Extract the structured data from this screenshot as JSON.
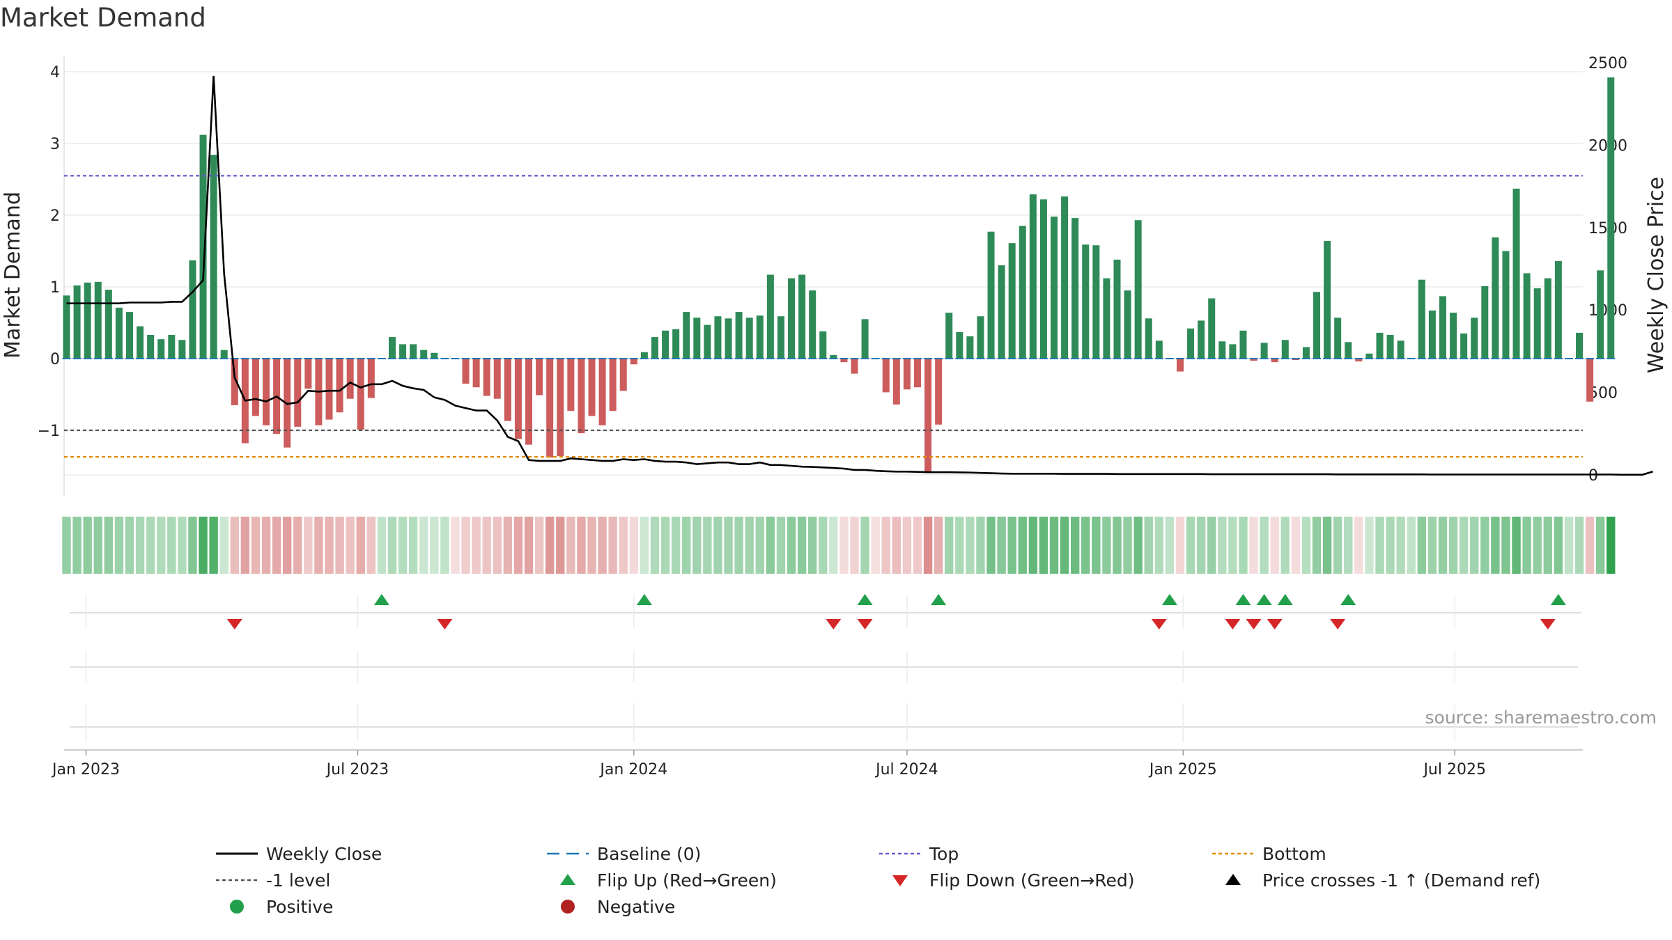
{
  "chart_data": {
    "type": "bar",
    "title": "Market Demand",
    "ylabel": "Market Demand",
    "ylabel_right": "Weekly Close Price",
    "ylim": [
      -1.6,
      4.0
    ],
    "ylim_right": [
      0,
      2550
    ],
    "yticks": [
      {
        "value": 4,
        "label": "4"
      },
      {
        "value": 3,
        "label": "3"
      },
      {
        "value": 2,
        "label": "2"
      },
      {
        "value": 1,
        "label": "1"
      },
      {
        "value": 0,
        "label": "0"
      },
      {
        "value": -1,
        "label": "−1"
      }
    ],
    "yticks_right": [
      {
        "value": 2500,
        "label": "2500"
      },
      {
        "value": 2000,
        "label": "2000"
      },
      {
        "value": 1500,
        "label": "1500"
      },
      {
        "value": 1000,
        "label": "1000"
      },
      {
        "value": 500,
        "label": "500"
      },
      {
        "value": 0,
        "label": "0"
      }
    ],
    "x_start": "2022-12-19",
    "x_ticks": [
      {
        "date": "2023-01-01",
        "label": "Jan 2023"
      },
      {
        "date": "2023-07-01",
        "label": "Jul 2023"
      },
      {
        "date": "2024-01-01",
        "label": "Jan 2024"
      },
      {
        "date": "2024-07-01",
        "label": "Jul 2024"
      },
      {
        "date": "2025-01-01",
        "label": "Jan 2025"
      },
      {
        "date": "2025-07-01",
        "label": "Jul 2025"
      }
    ],
    "reference_lines": {
      "baseline": 0,
      "top": 2.55,
      "minus_one": -1,
      "bottom": -1.37
    },
    "demand": [
      0.88,
      1.02,
      1.06,
      1.07,
      0.96,
      0.71,
      0.65,
      0.45,
      0.33,
      0.27,
      0.33,
      0.26,
      1.37,
      3.12,
      2.84,
      0.12,
      -0.65,
      -1.18,
      -0.8,
      -0.93,
      -1.05,
      -1.24,
      -0.95,
      -0.42,
      -0.93,
      -0.85,
      -0.75,
      -0.56,
      -0.99,
      -0.55,
      0,
      0.3,
      0.2,
      0.2,
      0.12,
      0.08,
      0,
      -0.01,
      -0.35,
      -0.4,
      -0.52,
      -0.56,
      -0.87,
      -1.12,
      -1.2,
      -0.51,
      -1.38,
      -1.36,
      -0.73,
      -1.04,
      -0.8,
      -0.93,
      -0.73,
      -0.45,
      -0.08,
      0.09,
      0.3,
      0.39,
      0.41,
      0.65,
      0.57,
      0.47,
      0.59,
      0.56,
      0.65,
      0.57,
      0.6,
      1.17,
      0.59,
      1.12,
      1.17,
      0.95,
      0.38,
      0.05,
      -0.05,
      -0.21,
      0.55,
      -0.01,
      -0.47,
      -0.64,
      -0.43,
      -0.4,
      -1.59,
      -0.92,
      0.64,
      0.37,
      0.31,
      0.59,
      1.77,
      1.3,
      1.61,
      1.85,
      2.29,
      2.22,
      1.98,
      2.26,
      1.96,
      1.59,
      1.58,
      1.12,
      1.38,
      0.95,
      1.93,
      0.56,
      0.25,
      0,
      -0.18,
      0.42,
      0.53,
      0.84,
      0.24,
      0.2,
      0.39,
      -0.03,
      0.22,
      -0.05,
      0.26,
      -0.02,
      0.16,
      0.93,
      1.64,
      0.57,
      0.23,
      -0.04,
      0.07,
      0.36,
      0.33,
      0.25,
      0,
      1.1,
      0.67,
      0.87,
      0.64,
      0.35,
      0.57,
      1.01,
      1.69,
      1.5,
      2.37,
      1.19,
      0.98,
      1.12,
      1.36,
      0,
      0.36,
      -0.6,
      1.23,
      3.92
    ],
    "weekly_close": [
      1040,
      1040,
      1040,
      1040,
      1040,
      1040,
      1045,
      1045,
      1045,
      1045,
      1050,
      1050,
      1110,
      1180,
      2420,
      1220,
      590,
      450,
      460,
      445,
      475,
      430,
      440,
      510,
      505,
      510,
      510,
      560,
      530,
      550,
      550,
      570,
      540,
      525,
      515,
      470,
      455,
      420,
      405,
      390,
      390,
      330,
      230,
      205,
      90,
      85,
      85,
      85,
      100,
      95,
      90,
      85,
      85,
      95,
      90,
      95,
      85,
      80,
      80,
      75,
      65,
      70,
      75,
      75,
      65,
      65,
      75,
      60,
      60,
      55,
      50,
      48,
      45,
      42,
      38,
      30,
      30,
      25,
      22,
      20,
      20,
      18,
      16,
      16,
      16,
      15,
      14,
      12,
      10,
      8,
      7,
      7,
      7,
      7,
      7,
      6,
      6,
      6,
      6,
      6,
      5,
      5,
      5,
      5,
      5,
      5,
      5,
      5,
      5,
      4,
      4,
      4,
      4,
      4,
      4,
      4,
      4,
      4,
      4,
      4,
      4,
      3,
      3,
      3,
      3,
      3,
      3,
      3,
      3,
      3,
      2,
      2,
      2,
      2,
      2,
      2,
      2,
      2,
      2,
      2,
      2,
      2,
      2,
      2,
      2,
      2,
      2,
      2,
      1,
      1,
      1,
      20
    ],
    "flip_up_weeks": [
      30,
      55,
      76,
      83,
      105,
      112,
      114,
      116,
      122,
      142
    ],
    "flip_down_weeks": [
      16,
      36,
      73,
      76,
      104,
      111,
      113,
      115,
      121,
      141
    ],
    "legend": [
      {
        "key": "weekly_close",
        "label": "Weekly Close"
      },
      {
        "key": "baseline",
        "label": "Baseline (0)"
      },
      {
        "key": "top",
        "label": "Top"
      },
      {
        "key": "bottom",
        "label": "Bottom"
      },
      {
        "key": "minus_one",
        "label": "-1 level"
      },
      {
        "key": "flip_up",
        "label": "Flip Up (Red→Green)"
      },
      {
        "key": "flip_down",
        "label": "Flip Down (Green→Red)"
      },
      {
        "key": "price_cross",
        "label": "Price crosses -1 ↑ (Demand ref)"
      },
      {
        "key": "positive",
        "label": "Positive"
      },
      {
        "key": "negative",
        "label": "Negative"
      }
    ],
    "source": "source: sharemaestro.com"
  },
  "colors": {
    "positive": "#2e8b57",
    "negative": "#cd5c5c",
    "price": "#000000",
    "baseline": "#1f77b4",
    "top": "#6a5acd",
    "bottom": "#e08b00",
    "minus_one": "#555555",
    "flip_up": "#22a04b",
    "flip_down": "#d62728",
    "legend_positive": "#22a04b",
    "legend_negative": "#b22222"
  }
}
